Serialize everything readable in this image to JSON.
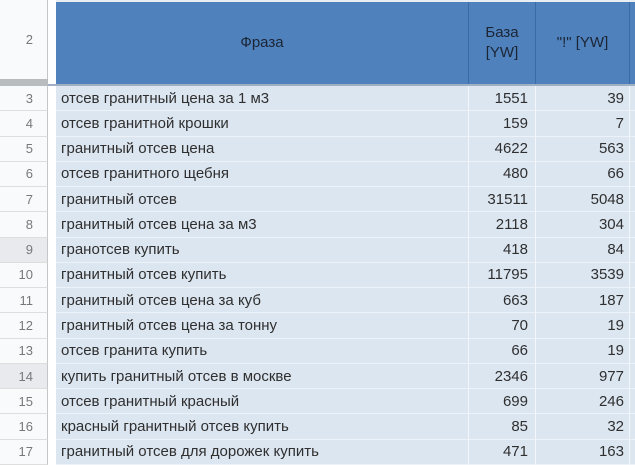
{
  "colors": {
    "header_bg": "#4f81bd",
    "header_border": "#3a6ca3",
    "header_text": "#1b2534",
    "row_fill": "#dce6f1",
    "gridline": "#f3f7fc",
    "gridline_h": "#edf2f9",
    "gutter_bg": "#f9fafb",
    "gutter_shaded": "#e8eaed",
    "gutter_border": "#c6c6c6",
    "row_number_color": "#76797c",
    "freeze_band": "#b9bcbf",
    "freeze_line": "#9fb0c4",
    "cell_text": "#2f2f2f"
  },
  "grid": {
    "corner_row_label": "2",
    "columns": [
      {
        "key": "phrase",
        "label": "Фраза"
      },
      {
        "key": "base",
        "label": "База [YW]"
      },
      {
        "key": "exact",
        "label": "\"!\" [YW]"
      }
    ]
  },
  "rows": [
    {
      "num": "3",
      "phrase": "отсев гранитный цена за 1 м3",
      "base": "1551",
      "exact": "39",
      "shaded": false
    },
    {
      "num": "4",
      "phrase": "отсев гранитной крошки",
      "base": "159",
      "exact": "7",
      "shaded": false
    },
    {
      "num": "5",
      "phrase": "гранитный отсев цена",
      "base": "4622",
      "exact": "563",
      "shaded": false
    },
    {
      "num": "6",
      "phrase": "отсев гранитного щебня",
      "base": "480",
      "exact": "66",
      "shaded": false
    },
    {
      "num": "7",
      "phrase": "гранитный отсев",
      "base": "31511",
      "exact": "5048",
      "shaded": false
    },
    {
      "num": "8",
      "phrase": "гранитный отсев цена за м3",
      "base": "2118",
      "exact": "304",
      "shaded": false
    },
    {
      "num": "9",
      "phrase": "гранотсев купить",
      "base": "418",
      "exact": "84",
      "shaded": true
    },
    {
      "num": "10",
      "phrase": "гранитный отсев купить",
      "base": "11795",
      "exact": "3539",
      "shaded": false
    },
    {
      "num": "11",
      "phrase": "гранитный отсев цена за куб",
      "base": "663",
      "exact": "187",
      "shaded": false
    },
    {
      "num": "12",
      "phrase": "гранитный отсев цена за тонну",
      "base": "70",
      "exact": "19",
      "shaded": false
    },
    {
      "num": "13",
      "phrase": "отсев гранита купить",
      "base": "66",
      "exact": "19",
      "shaded": false
    },
    {
      "num": "14",
      "phrase": "купить гранитный отсев в москве",
      "base": "2346",
      "exact": "977",
      "shaded": true
    },
    {
      "num": "15",
      "phrase": "отсев гранитный красный",
      "base": "699",
      "exact": "246",
      "shaded": false
    },
    {
      "num": "16",
      "phrase": "красный гранитный отсев купить",
      "base": "85",
      "exact": "32",
      "shaded": false
    },
    {
      "num": "17",
      "phrase": "гранитный отсев для дорожек купить",
      "base": "471",
      "exact": "163",
      "shaded": false
    }
  ]
}
